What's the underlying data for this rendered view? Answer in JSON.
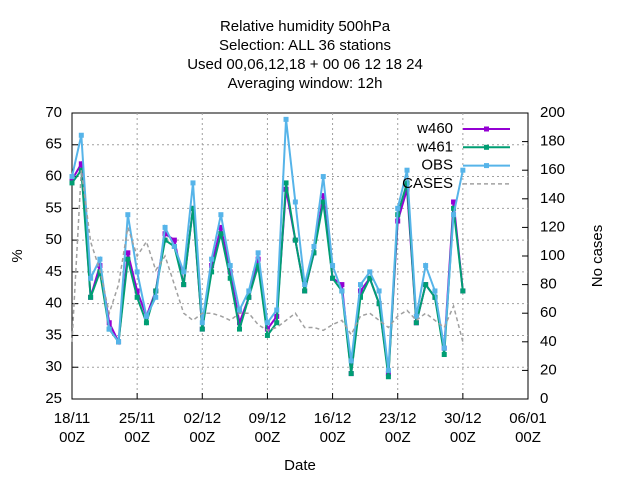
{
  "chart_data": {
    "type": "line",
    "title": [
      "Relative humidity 500hPa",
      "Selection: ALL     36 stations",
      "Used  00,06,12,18  + 00 06 12 18 24",
      "Averaging window: 12h"
    ],
    "xlabel": "Date",
    "ylabel": "%",
    "y2label": "No cases",
    "x": [
      0,
      1,
      2,
      3,
      4,
      5,
      6,
      7,
      8,
      9,
      10,
      11,
      12,
      13,
      14,
      15,
      16,
      17,
      18,
      19,
      20,
      21,
      22,
      23,
      24,
      25,
      26,
      27,
      28,
      29,
      30,
      31,
      32,
      33,
      34,
      35,
      36,
      37,
      38,
      39,
      40,
      41,
      42
    ],
    "xlim": [
      0,
      49
    ],
    "xticks": [
      {
        "value": 0,
        "label": "18/11 00Z"
      },
      {
        "value": 7,
        "label": "25/11 00Z"
      },
      {
        "value": 14,
        "label": "02/12 00Z"
      },
      {
        "value": 21,
        "label": "09/12 00Z"
      },
      {
        "value": 28,
        "label": "16/12 00Z"
      },
      {
        "value": 35,
        "label": "23/12 00Z"
      },
      {
        "value": 42,
        "label": "30/12 00Z"
      },
      {
        "value": 49,
        "label": "06/01 00Z"
      }
    ],
    "ylim": [
      25,
      70
    ],
    "yticks": [
      25,
      30,
      35,
      40,
      45,
      50,
      55,
      60,
      65,
      70
    ],
    "y2lim": [
      0,
      200
    ],
    "y2ticks": [
      0,
      20,
      40,
      60,
      80,
      100,
      120,
      140,
      160,
      180,
      200
    ],
    "grid": true,
    "legend": "upper right",
    "series": [
      {
        "name": "w460",
        "color": "#9400d3",
        "values": [
          59.5,
          62,
          41,
          46,
          37,
          34,
          48,
          42,
          38,
          42,
          51,
          50,
          43,
          55,
          36,
          46,
          52,
          45,
          37,
          41,
          47,
          36,
          38,
          58,
          50,
          42,
          48,
          57,
          44,
          43,
          29,
          42,
          44,
          40,
          29,
          53,
          58,
          37,
          43,
          41,
          33,
          56,
          42
        ]
      },
      {
        "name": "w461",
        "color": "#009e73",
        "values": [
          59,
          61,
          41,
          45,
          36,
          34,
          47,
          41,
          37,
          42,
          50,
          49,
          43,
          55,
          36,
          45,
          51,
          44,
          36,
          41,
          46,
          35,
          37,
          59,
          50,
          42,
          48,
          56,
          44,
          42,
          29,
          41,
          44,
          40,
          28.5,
          54,
          59,
          37,
          43,
          41,
          32,
          55,
          42
        ]
      },
      {
        "name": "OBS",
        "color": "#56b4e9",
        "values": [
          60,
          66.5,
          44,
          47,
          36,
          34,
          54,
          45,
          38,
          41,
          52,
          49,
          45,
          59,
          37,
          47,
          54,
          46,
          39,
          42,
          48,
          37,
          39,
          69,
          56,
          43,
          49,
          60,
          46,
          42,
          31,
          43,
          45,
          42,
          29.5,
          55,
          61,
          38,
          46,
          42,
          33,
          54,
          61
        ]
      },
      {
        "name": "CASES",
        "color": "#a0a0a0",
        "axis": "y2",
        "values": [
          40,
          160,
          110,
          90,
          60,
          80,
          120,
          100,
          110,
          90,
          100,
          80,
          60,
          55,
          60,
          60,
          58,
          55,
          60,
          60,
          52,
          48,
          50,
          55,
          60,
          50,
          50,
          48,
          52,
          55,
          45,
          58,
          60,
          55,
          50,
          58,
          62,
          55,
          60,
          55,
          50,
          65,
          40
        ]
      }
    ]
  }
}
